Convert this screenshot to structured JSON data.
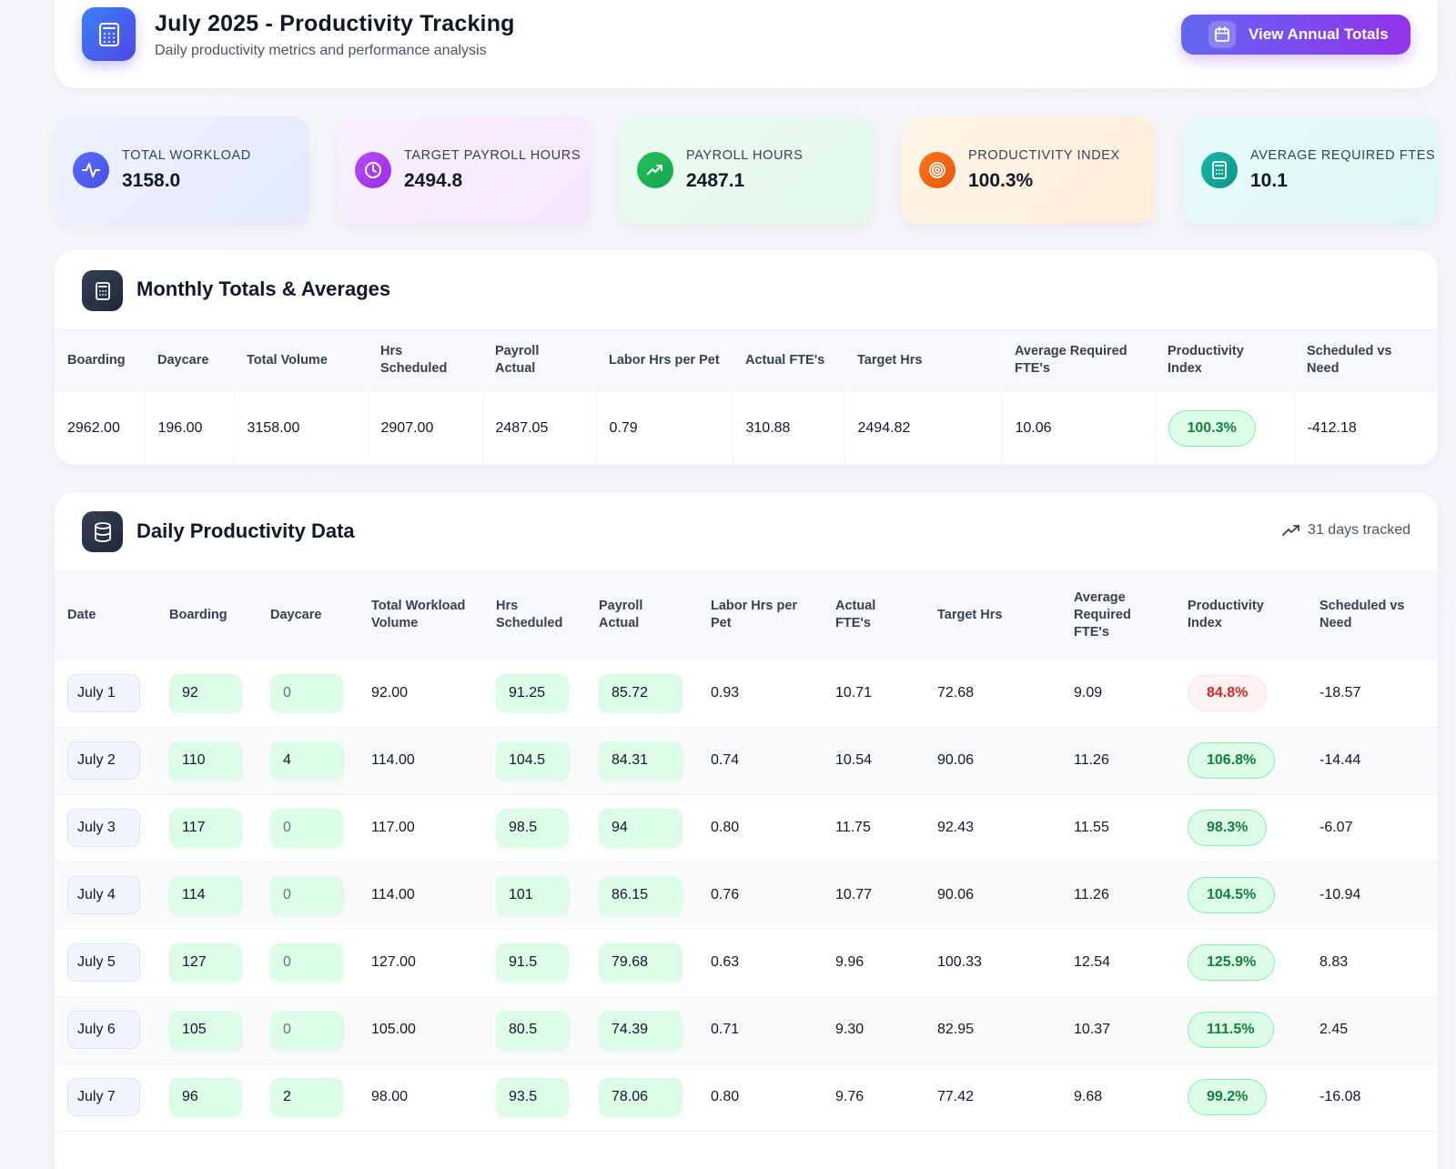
{
  "header": {
    "title": "July 2025 - Productivity Tracking",
    "subtitle": "Daily productivity metrics and performance analysis",
    "annual_button": "View Annual Totals"
  },
  "kpis": [
    {
      "label": "TOTAL WORKLOAD",
      "value": "3158.0",
      "icon": "activity-icon",
      "bg": "#e7ecff",
      "icon_color": "#4f5ff0"
    },
    {
      "label": "TARGET PAYROLL HOURS",
      "value": "2494.8",
      "icon": "clock-icon",
      "bg": "#f5eafe",
      "icon_color": "#a836f0"
    },
    {
      "label": "PAYROLL HOURS",
      "value": "2487.1",
      "icon": "trending-up-icon",
      "bg": "#e6f8ed",
      "icon_color": "#16a34a"
    },
    {
      "label": "PRODUCTIVITY INDEX",
      "value": "100.3%",
      "icon": "target-icon",
      "bg": "#fff1e1",
      "icon_color": "#f26a0d"
    },
    {
      "label": "AVERAGE REQUIRED FTES",
      "value": "10.1",
      "icon": "calculator-icon",
      "bg": "#e3f8f7",
      "icon_color": "#0d9488"
    }
  ],
  "monthly": {
    "title": "Monthly Totals & Averages",
    "headers": [
      "Boarding",
      "Daycare",
      "Total Volume",
      "Hrs Scheduled",
      "Payroll Actual",
      "Labor Hrs per Pet",
      "Actual FTE's",
      "Target Hrs",
      "Average Required FTE's",
      "Productivity Index",
      "Scheduled vs Need"
    ],
    "values": [
      "2962.00",
      "196.00",
      "3158.00",
      "2907.00",
      "2487.05",
      "0.79",
      "310.88",
      "2494.82",
      "10.06",
      "100.3%",
      "-412.18"
    ]
  },
  "daily": {
    "title": "Daily Productivity Data",
    "days_tracked": "31 days tracked",
    "headers": [
      "Date",
      "Boarding",
      "Daycare",
      "Total Workload Volume",
      "Hrs Scheduled",
      "Payroll Actual",
      "Labor Hrs per Pet",
      "Actual FTE's",
      "Target Hrs",
      "Average Required FTE's",
      "Productivity Index",
      "Scheduled vs Need"
    ],
    "rows": [
      {
        "date": "July 1",
        "boarding": "92",
        "daycare": "0",
        "total": "92.00",
        "scheduled": "91.25",
        "payroll": "85.72",
        "labor": "0.93",
        "fte": "10.71",
        "target": "72.68",
        "avg_fte": "9.09",
        "index": "84.8%",
        "status": "bad",
        "need": "-18.57"
      },
      {
        "date": "July 2",
        "boarding": "110",
        "daycare": "4",
        "total": "114.00",
        "scheduled": "104.5",
        "payroll": "84.31",
        "labor": "0.74",
        "fte": "10.54",
        "target": "90.06",
        "avg_fte": "11.26",
        "index": "106.8%",
        "status": "good",
        "need": "-14.44"
      },
      {
        "date": "July 3",
        "boarding": "117",
        "daycare": "0",
        "total": "117.00",
        "scheduled": "98.5",
        "payroll": "94",
        "labor": "0.80",
        "fte": "11.75",
        "target": "92.43",
        "avg_fte": "11.55",
        "index": "98.3%",
        "status": "good",
        "need": "-6.07"
      },
      {
        "date": "July 4",
        "boarding": "114",
        "daycare": "0",
        "total": "114.00",
        "scheduled": "101",
        "payroll": "86.15",
        "labor": "0.76",
        "fte": "10.77",
        "target": "90.06",
        "avg_fte": "11.26",
        "index": "104.5%",
        "status": "good",
        "need": "-10.94"
      },
      {
        "date": "July 5",
        "boarding": "127",
        "daycare": "0",
        "total": "127.00",
        "scheduled": "91.5",
        "payroll": "79.68",
        "labor": "0.63",
        "fte": "9.96",
        "target": "100.33",
        "avg_fte": "12.54",
        "index": "125.9%",
        "status": "good",
        "need": "8.83"
      },
      {
        "date": "July 6",
        "boarding": "105",
        "daycare": "0",
        "total": "105.00",
        "scheduled": "80.5",
        "payroll": "74.39",
        "labor": "0.71",
        "fte": "9.30",
        "target": "82.95",
        "avg_fte": "10.37",
        "index": "111.5%",
        "status": "good",
        "need": "2.45"
      },
      {
        "date": "July 7",
        "boarding": "96",
        "daycare": "2",
        "total": "98.00",
        "scheduled": "93.5",
        "payroll": "78.06",
        "labor": "0.80",
        "fte": "9.76",
        "target": "77.42",
        "avg_fte": "9.68",
        "index": "99.2%",
        "status": "good",
        "need": "-16.08"
      }
    ]
  }
}
